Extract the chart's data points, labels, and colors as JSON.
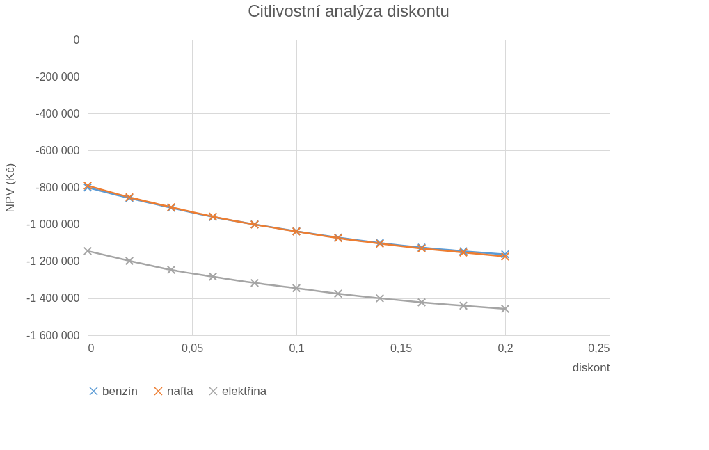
{
  "chart_data": {
    "type": "line",
    "title": "Citlivostní analýza diskontu",
    "xlabel": "diskont",
    "ylabel": "NPV (Kč)",
    "x": [
      0,
      0.02,
      0.04,
      0.06,
      0.08,
      0.1,
      0.12,
      0.14,
      0.16,
      0.18,
      0.2
    ],
    "series": [
      {
        "name": "benzín",
        "color": "#5b9bd5",
        "values": [
          -800000,
          -858000,
          -910000,
          -960000,
          -1000000,
          -1037000,
          -1071000,
          -1100000,
          -1125000,
          -1145000,
          -1162000
        ]
      },
      {
        "name": "nafta",
        "color": "#ed7d31",
        "values": [
          -790000,
          -853000,
          -907000,
          -958000,
          -1001000,
          -1038000,
          -1074000,
          -1104000,
          -1130000,
          -1152000,
          -1174000
        ]
      },
      {
        "name": "elektřina",
        "color": "#a5a5a5",
        "values": [
          -1144000,
          -1197000,
          -1246000,
          -1283000,
          -1317000,
          -1345000,
          -1375000,
          -1400000,
          -1422000,
          -1440000,
          -1457000
        ]
      }
    ],
    "xlim": [
      0,
      0.25
    ],
    "xticks": [
      0,
      {
        "value": 0.05,
        "label": "0,05"
      },
      {
        "value": 0.1,
        "label": "0,1"
      },
      {
        "value": 0.15,
        "label": "0,15"
      },
      {
        "value": 0.2,
        "label": "0,2"
      },
      {
        "value": 0.25,
        "label": "0,25"
      }
    ],
    "ylim": [
      -1600000,
      0
    ],
    "yticks": [
      {
        "value": -1600000,
        "label": "-1 600 000"
      },
      {
        "value": -1400000,
        "label": "-1 400 000"
      },
      {
        "value": -1200000,
        "label": "-1 200 000"
      },
      {
        "value": -1000000,
        "label": "-1 000 000"
      },
      {
        "value": -800000,
        "label": "-800 000"
      },
      {
        "value": -600000,
        "label": "-600 000"
      },
      {
        "value": -400000,
        "label": "-400 000"
      },
      {
        "value": -200000,
        "label": "-200 000"
      },
      0
    ],
    "grid": true,
    "legend": "bottom",
    "marker": "cross",
    "line_style": "solid"
  }
}
